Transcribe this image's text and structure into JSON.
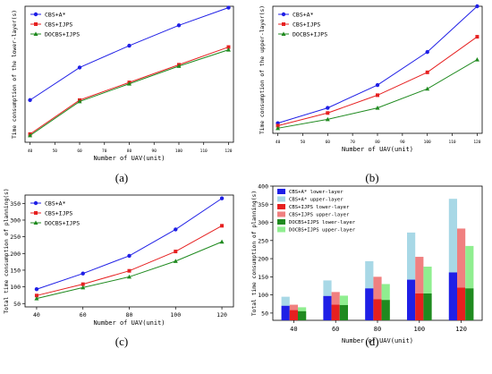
{
  "colors": {
    "cbs_astar": "#1f1fe6",
    "cbs_ijps": "#e62020",
    "docbs_ijps": "#1f8a1f",
    "cbs_astar_upper": "#a8d8e6",
    "cbs_ijps_upper": "#f08080",
    "docbs_ijps_upper": "#90ee90"
  },
  "chart_data": [
    {
      "id": "a",
      "type": "line",
      "caption": "(a)",
      "title": "",
      "xlabel": "Number of UAV(unit)",
      "ylabel": "Time consumption of the lower-layer(s)",
      "x": [
        40,
        60,
        80,
        100,
        120
      ],
      "xticks": [
        "40",
        "50",
        "60",
        "70",
        "80",
        "90",
        "100",
        "110",
        "120"
      ],
      "xlim": [
        38,
        122
      ],
      "ylim": [
        0,
        100
      ],
      "grid": false,
      "legend_position": "top-left",
      "series": [
        {
          "name": "CBS+A*",
          "color_key": "cbs_astar",
          "marker": "circle",
          "values": [
            31,
            55,
            71,
            86,
            99
          ]
        },
        {
          "name": "CBS+IJPS",
          "color_key": "cbs_ijps",
          "marker": "square",
          "values": [
            6,
            31,
            44,
            57,
            70
          ]
        },
        {
          "name": "DOCBS+IJPS",
          "color_key": "docbs_ijps",
          "marker": "triangle",
          "values": [
            5,
            30,
            43,
            56,
            68
          ]
        }
      ]
    },
    {
      "id": "b",
      "type": "line",
      "caption": "(b)",
      "title": "",
      "xlabel": "Number of UAV(unit)",
      "ylabel": "Time consumption of the upper-layer(s)",
      "x": [
        40,
        60,
        80,
        100,
        120
      ],
      "xticks": [
        "40",
        "50",
        "60",
        "70",
        "80",
        "90",
        "100",
        "110",
        "120"
      ],
      "xlim": [
        38,
        122
      ],
      "ylim": [
        0,
        100
      ],
      "grid": false,
      "legend_position": "top-left",
      "series": [
        {
          "name": "CBS+A*",
          "color_key": "cbs_astar",
          "marker": "circle",
          "values": [
            8,
            20,
            38,
            64,
            100
          ]
        },
        {
          "name": "CBS+IJPS",
          "color_key": "cbs_ijps",
          "marker": "square",
          "values": [
            6,
            16,
            30,
            48,
            76
          ]
        },
        {
          "name": "DOCBS+IJPS",
          "color_key": "docbs_ijps",
          "marker": "triangle",
          "values": [
            4,
            11,
            20,
            35,
            58
          ]
        }
      ]
    },
    {
      "id": "c",
      "type": "line",
      "caption": "(c)",
      "title": "",
      "xlabel": "Number of UAV(unit)",
      "ylabel": "Total time consumption of planning(s)",
      "x": [
        40,
        60,
        80,
        100,
        120
      ],
      "xticks": [
        "40",
        "60",
        "80",
        "100",
        "120"
      ],
      "xlim": [
        35,
        125
      ],
      "yticks": [
        "50",
        "100",
        "150",
        "200",
        "250",
        "300",
        "350"
      ],
      "ylim": [
        40,
        375
      ],
      "grid": false,
      "legend_position": "top-left",
      "series": [
        {
          "name": "CBS+A*",
          "color_key": "cbs_astar",
          "marker": "circle",
          "values": [
            93,
            140,
            193,
            272,
            365
          ]
        },
        {
          "name": "CBS+IJPS",
          "color_key": "cbs_ijps",
          "marker": "square",
          "values": [
            74,
            108,
            148,
            206,
            283
          ]
        },
        {
          "name": "DOCBS+IJPS",
          "color_key": "docbs_ijps",
          "marker": "triangle",
          "values": [
            65,
            98,
            130,
            177,
            235
          ]
        }
      ]
    },
    {
      "id": "d",
      "type": "bar",
      "caption": "(d)",
      "title": "",
      "xlabel": "Number of UAV(unit)",
      "ylabel": "Total time consumption of planning(s)",
      "categories": [
        "40",
        "60",
        "80",
        "100",
        "120"
      ],
      "yticks": [
        "50",
        "100",
        "150",
        "200",
        "250",
        "300",
        "350",
        "400"
      ],
      "ylim": [
        30,
        400
      ],
      "grid": false,
      "legend_position": "top-left",
      "series": [
        {
          "name": "CBS+A* lower-layer",
          "color_key": "cbs_astar",
          "group": 0,
          "part": "lower",
          "values": [
            70,
            97,
            118,
            142,
            162
          ]
        },
        {
          "name": "CBS+A* upper-layer",
          "color_key": "cbs_astar_upper",
          "group": 0,
          "part": "upper",
          "values": [
            95,
            140,
            193,
            272,
            365
          ]
        },
        {
          "name": "CBS+IJPS lower-layer",
          "color_key": "cbs_ijps",
          "group": 1,
          "part": "lower",
          "values": [
            58,
            73,
            88,
            104,
            120
          ]
        },
        {
          "name": "CBS+IJPS upper-layer",
          "color_key": "cbs_ijps_upper",
          "group": 1,
          "part": "upper",
          "values": [
            73,
            108,
            150,
            205,
            283
          ]
        },
        {
          "name": "DOCBS+IJPS lower-layer",
          "color_key": "docbs_ijps",
          "group": 2,
          "part": "lower",
          "values": [
            55,
            72,
            86,
            104,
            118
          ]
        },
        {
          "name": "DOCBS+IJPS upper-layer",
          "color_key": "docbs_ijps_upper",
          "group": 2,
          "part": "upper",
          "values": [
            66,
            98,
            130,
            178,
            235
          ]
        }
      ]
    }
  ]
}
